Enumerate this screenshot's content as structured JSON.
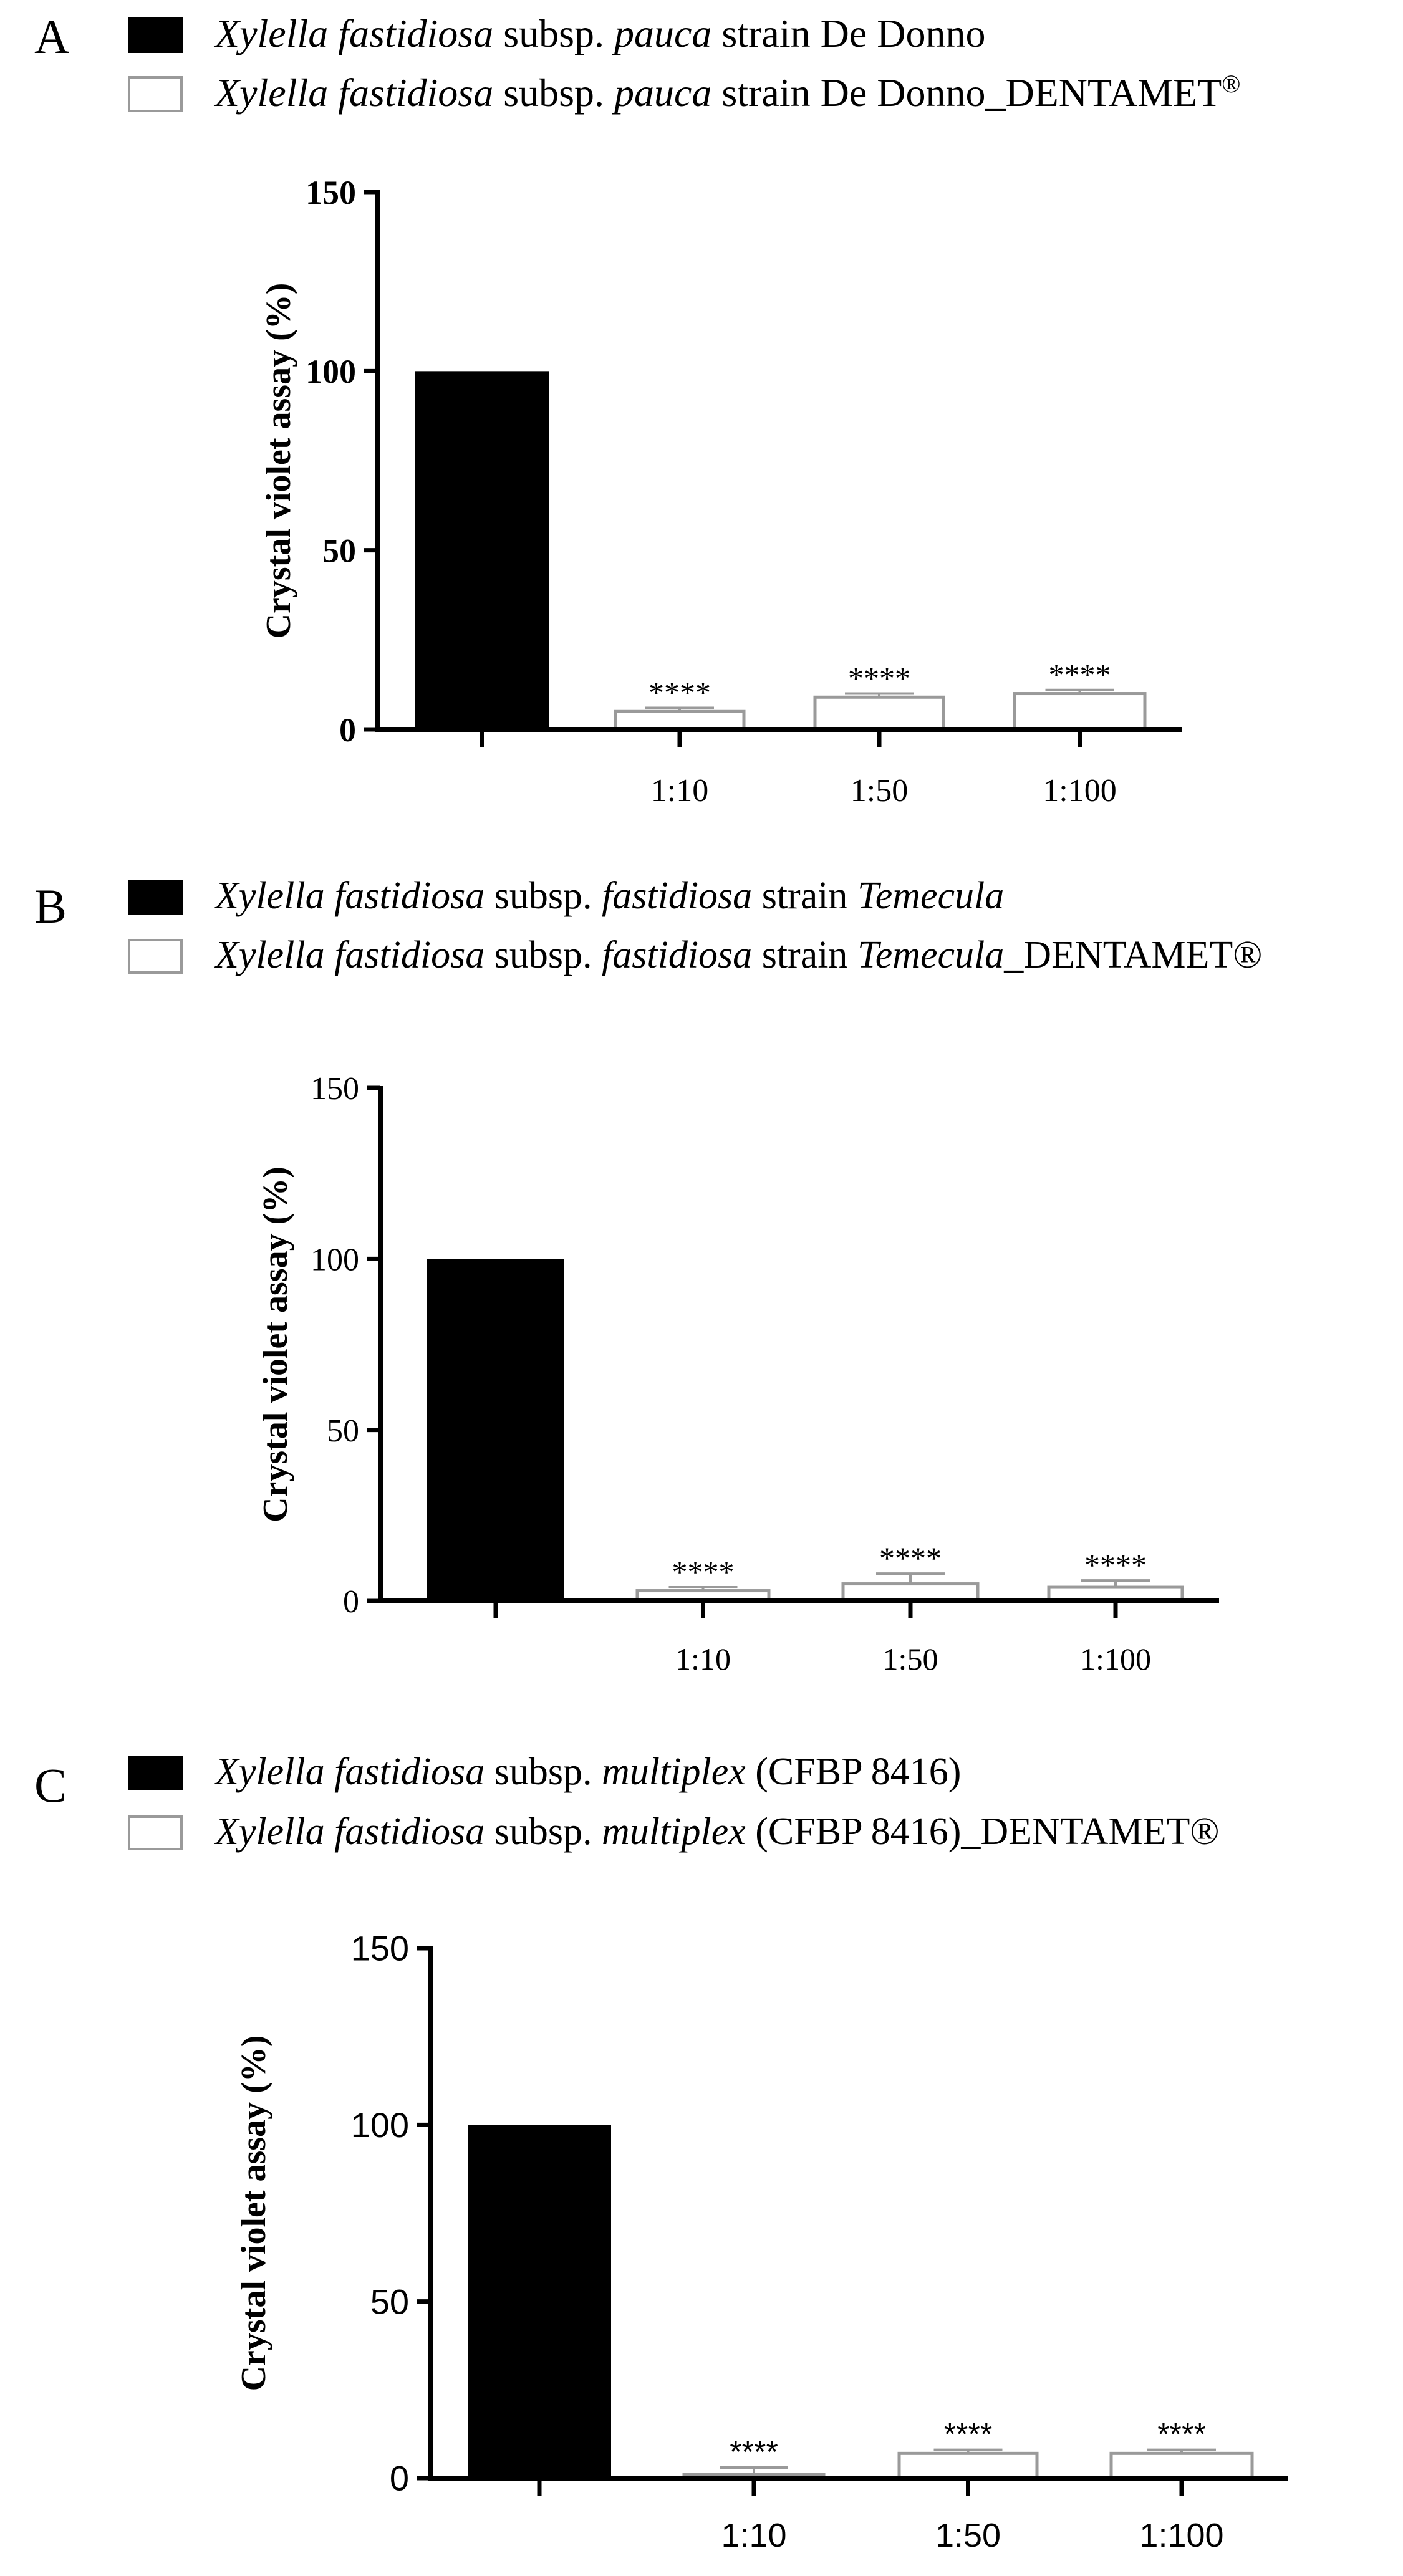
{
  "figure": {
    "panels": [
      {
        "letter": "A",
        "legend": [
          {
            "species": "Xylella fastidiosa",
            "mid1": " subsp. ",
            "subsp": "pauca",
            "mid2": " strain ",
            "strain": "De Donno",
            "suffix": "",
            "reg": ""
          },
          {
            "species": "Xylella fastidiosa",
            "mid1": " subsp. ",
            "subsp": "pauca",
            "mid2": " strain ",
            "strain": "De Donno",
            "suffix": "_DENTAMET",
            "reg": "®"
          }
        ]
      },
      {
        "letter": "B",
        "legend": [
          {
            "species": "Xylella fastidiosa",
            "mid1": " subsp. ",
            "subsp": "fastidiosa",
            "mid2": " strain ",
            "strain": "Temecula",
            "suffix": "",
            "reg": ""
          },
          {
            "species": "Xylella fastidiosa",
            "mid1": " subsp. ",
            "subsp": "fastidiosa",
            "mid2": " strain ",
            "strain": "Temecula",
            "suffix": "_DENTAMET®",
            "reg": ""
          }
        ]
      },
      {
        "letter": "C",
        "legend": [
          {
            "species": "Xylella fastidiosa",
            "mid1": " subsp. ",
            "subsp": "multiplex",
            "mid2": " (CFBP 8416)",
            "strain": "",
            "suffix": "",
            "reg": ""
          },
          {
            "species": "Xylella fastidiosa",
            "mid1": " subsp. ",
            "subsp": "multiplex",
            "mid2": " (CFBP 8416)",
            "strain": "",
            "suffix": "_DENTAMET®",
            "reg": ""
          }
        ]
      }
    ]
  },
  "colors": {
    "control": "#000000",
    "treated_fill": "#ffffff",
    "treated_stroke": "#9a9a9a",
    "axis": "#000000"
  },
  "chart_data": [
    {
      "panel": "A",
      "type": "bar",
      "categories": [
        "",
        "1:10",
        "1:50",
        "1:100"
      ],
      "series": [
        {
          "name": "Xylella fastidiosa subsp. pauca strain De Donno",
          "values": [
            100,
            null,
            null,
            null
          ]
        },
        {
          "name": "Xylella fastidiosa subsp. pauca strain De Donno_DENTAMET®",
          "values": [
            null,
            5,
            9,
            10
          ],
          "errors": [
            null,
            1,
            1,
            1
          ],
          "annotations": [
            null,
            "****",
            "****",
            "****"
          ]
        }
      ],
      "ylabel": "Crystal violet assay (%)",
      "ylim": [
        0,
        150
      ],
      "yticks": [
        0,
        50,
        100,
        150
      ],
      "grid": false,
      "legend_position": "top"
    },
    {
      "panel": "B",
      "type": "bar",
      "categories": [
        "",
        "1:10",
        "1:50",
        "1:100"
      ],
      "series": [
        {
          "name": "Xylella fastidiosa subsp. fastidiosa strain Temecula",
          "values": [
            100,
            null,
            null,
            null
          ]
        },
        {
          "name": "Xylella fastidiosa subsp. fastidiosa strain Temecula_DENTAMET®",
          "values": [
            null,
            3,
            5,
            4
          ],
          "errors": [
            null,
            1,
            3,
            2
          ],
          "annotations": [
            null,
            "****",
            "****",
            "****"
          ]
        }
      ],
      "ylabel": "Crystal violet assay (%)",
      "ylim": [
        0,
        150
      ],
      "yticks": [
        0,
        50,
        100,
        150
      ],
      "grid": false,
      "legend_position": "top"
    },
    {
      "panel": "C",
      "type": "bar",
      "categories": [
        "",
        "1:10",
        "1:50",
        "1:100"
      ],
      "series": [
        {
          "name": "Xylella fastidiosa subsp. multiplex (CFBP 8416)",
          "values": [
            100,
            null,
            null,
            null
          ]
        },
        {
          "name": "Xylella fastidiosa subsp. multiplex (CFBP 8416)_DENTAMET®",
          "values": [
            null,
            1,
            7,
            7
          ],
          "errors": [
            null,
            2,
            1,
            1
          ],
          "annotations": [
            null,
            "****",
            "****",
            "****"
          ]
        }
      ],
      "ylabel": "Crystal violet assay (%)",
      "ylim": [
        0,
        150
      ],
      "yticks": [
        0,
        50,
        100,
        150
      ],
      "grid": false,
      "legend_position": "top"
    }
  ]
}
